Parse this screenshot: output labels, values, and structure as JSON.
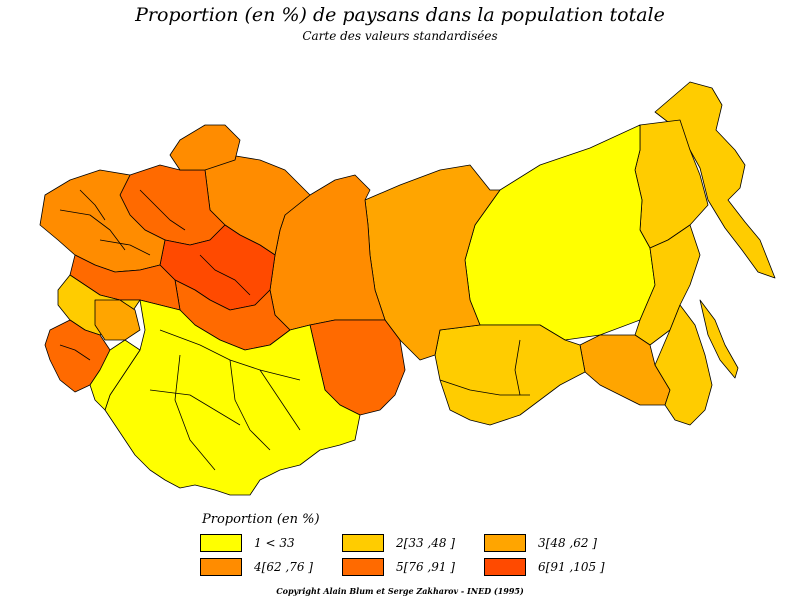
{
  "title": "Proportion (en %) de paysans dans la population totale",
  "subtitle": "Carte des valeurs standardisées",
  "legend": {
    "title": "Proportion (en %)",
    "classes": [
      {
        "label": "1 < 33",
        "color": "#ffff00"
      },
      {
        "label": "2[33 ,48 ]",
        "color": "#ffcc00"
      },
      {
        "label": "3[48 ,62 ]",
        "color": "#ffa500"
      },
      {
        "label": "4[62 ,76 ]",
        "color": "#ff8c00"
      },
      {
        "label": "5[76 ,91 ]",
        "color": "#ff6a00"
      },
      {
        "label": "6[91 ,105 ]",
        "color": "#ff4a00"
      }
    ]
  },
  "copyright": "Copyright Alain Blum et Serge Zakharov - INED (1995)"
}
